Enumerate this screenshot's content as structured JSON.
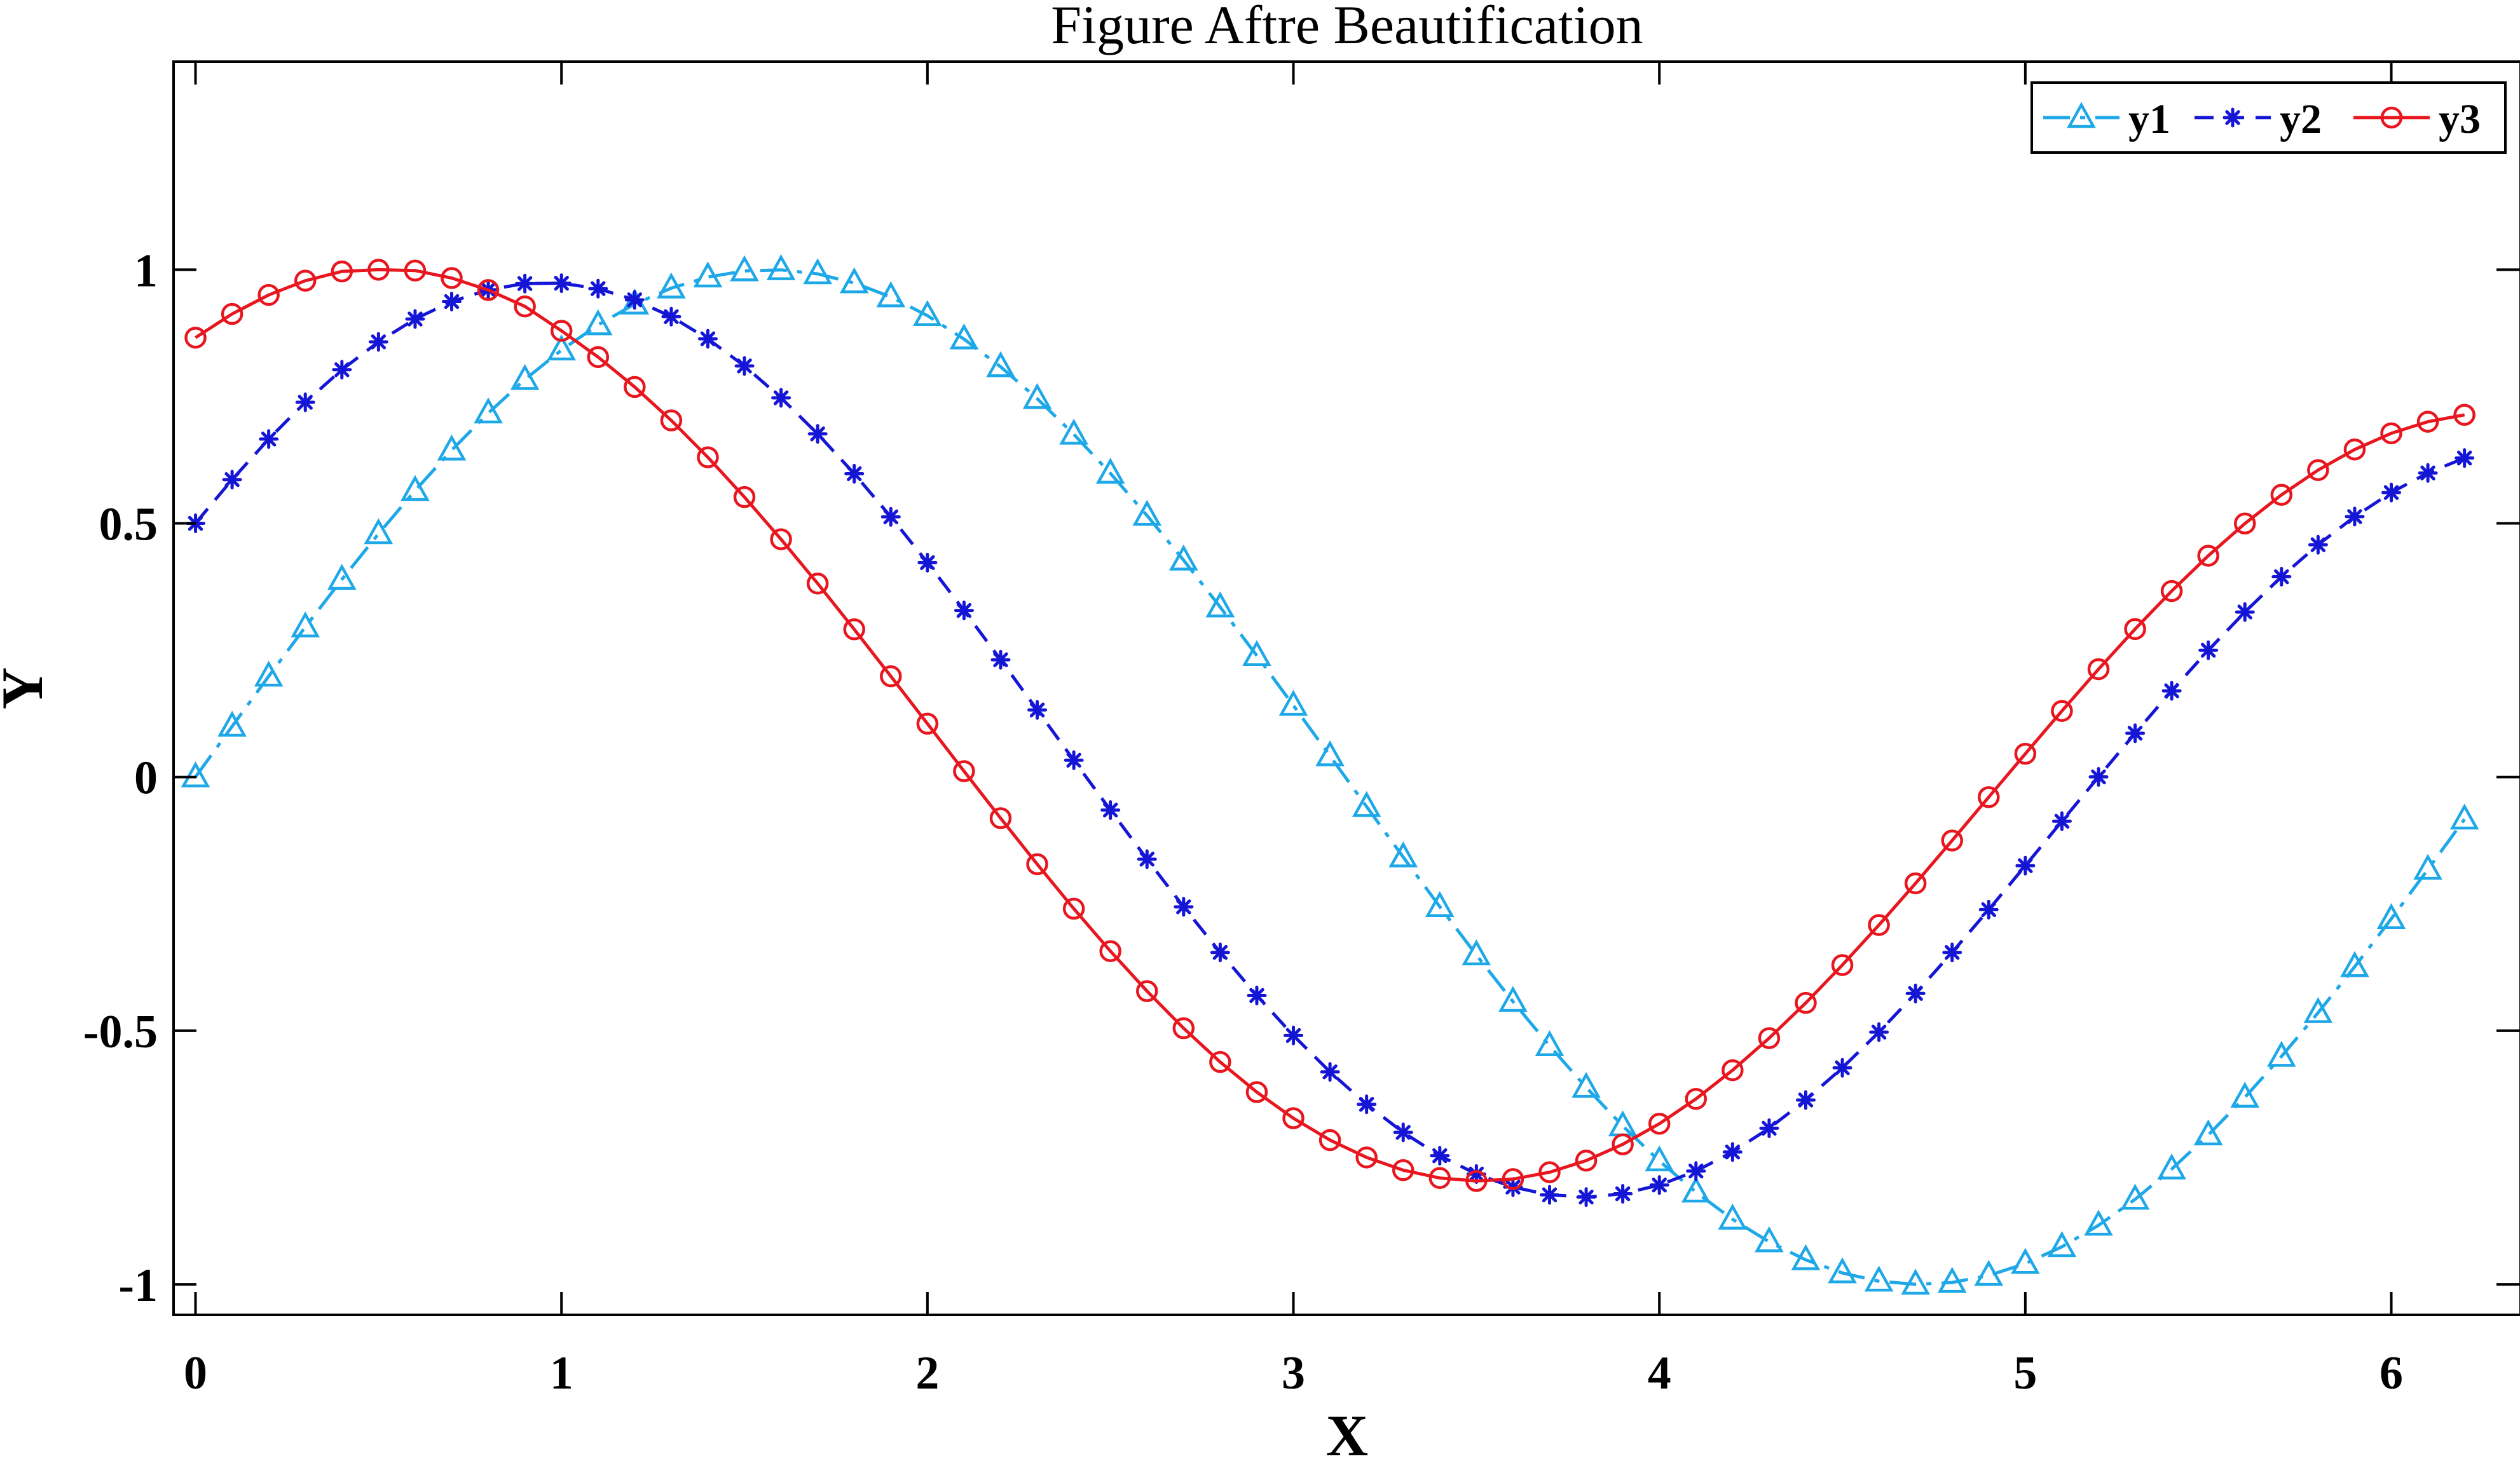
{
  "chart_data": {
    "type": "line",
    "title": "Figure Aftre Beautification",
    "xlabel": "X",
    "ylabel": "Y",
    "xlim": [
      -0.06,
      6.35
    ],
    "ylim": [
      -1.06,
      1.41
    ],
    "x_ticks": [
      0,
      1,
      2,
      3,
      4,
      5,
      6
    ],
    "x_tick_labels": [
      "0",
      "1",
      "2",
      "3",
      "4",
      "5",
      "6"
    ],
    "y_ticks": [
      -1,
      -0.5,
      0,
      0.5,
      1
    ],
    "y_tick_labels": [
      "-1",
      "-0.5",
      "0",
      "0.5",
      "1"
    ],
    "grid": false,
    "box": true,
    "legend_position": "top-right",
    "legend_orientation": "horizontal",
    "x": [
      0,
      0.1,
      0.2,
      0.3,
      0.4,
      0.5,
      0.6,
      0.7,
      0.8,
      0.9,
      1.0,
      1.1,
      1.2,
      1.3,
      1.4,
      1.5,
      1.6,
      1.7,
      1.8,
      1.9,
      2.0,
      2.1,
      2.2,
      2.3,
      2.4,
      2.5,
      2.6,
      2.7,
      2.8,
      2.9,
      3.0,
      3.1,
      3.2,
      3.3,
      3.4,
      3.5,
      3.6,
      3.7,
      3.8,
      3.9,
      4.0,
      4.1,
      4.2,
      4.3,
      4.4,
      4.5,
      4.6,
      4.7,
      4.8,
      4.9,
      5.0,
      5.1,
      5.2,
      5.3,
      5.4,
      5.5,
      5.6,
      5.7,
      5.8,
      5.9,
      6.0,
      6.1,
      6.2
    ],
    "series": [
      {
        "name": "y1",
        "color": "#1ea8e8",
        "line_style": "dash-dot",
        "marker": "triangle",
        "values": [
          0.0,
          0.0998,
          0.1987,
          0.2955,
          0.3894,
          0.4794,
          0.5646,
          0.6442,
          0.7174,
          0.7833,
          0.8415,
          0.8912,
          0.932,
          0.9636,
          0.9854,
          0.9975,
          0.9996,
          0.9917,
          0.9738,
          0.9463,
          0.9093,
          0.8632,
          0.8085,
          0.7457,
          0.6755,
          0.5985,
          0.5155,
          0.4274,
          0.335,
          0.2392,
          0.1411,
          0.0416,
          -0.0584,
          -0.1577,
          -0.2555,
          -0.3508,
          -0.4425,
          -0.5298,
          -0.6119,
          -0.6878,
          -0.7568,
          -0.8183,
          -0.8716,
          -0.9162,
          -0.9516,
          -0.9775,
          -0.9937,
          -0.9999,
          -0.9962,
          -0.9825,
          -0.9589,
          -0.9258,
          -0.8835,
          -0.8323,
          -0.7728,
          -0.7055,
          -0.6313,
          -0.5507,
          -0.4646,
          -0.3739,
          -0.2794,
          -0.1822,
          -0.0831
        ]
      },
      {
        "name": "y2",
        "color": "#1515d6",
        "line_style": "dashed",
        "marker": "asterisk",
        "values": [
          0.5,
          0.5862,
          0.6661,
          0.7386,
          0.8028,
          0.8577,
          0.9027,
          0.9371,
          0.9605,
          0.9726,
          0.9733,
          0.9626,
          0.9405,
          0.9074,
          0.8637,
          0.8102,
          0.7474,
          0.6763,
          0.5978,
          0.5128,
          0.4226,
          0.3283,
          0.2311,
          0.1322,
          0.0331,
          -0.0651,
          -0.1619,
          -0.2558,
          -0.3457,
          -0.4306,
          -0.5094,
          -0.5812,
          -0.6451,
          -0.7004,
          -0.7464,
          -0.7825,
          -0.8083,
          -0.8235,
          -0.8279,
          -0.8214,
          -0.8042,
          -0.7766,
          -0.7391,
          -0.6922,
          -0.6366,
          -0.5731,
          -0.5028,
          -0.4266,
          -0.3457,
          -0.2614,
          -0.1747,
          -0.0871,
          0.0002,
          0.0863,
          0.1699,
          0.2499,
          0.3252,
          0.3948,
          0.4578,
          0.5133,
          0.5607,
          0.5993,
          0.6287
        ]
      },
      {
        "name": "y3",
        "color": "#e8161e",
        "line_style": "solid",
        "marker": "circle",
        "values": [
          0.866,
          0.9127,
          0.9502,
          0.9783,
          0.9965,
          0.9999,
          0.9983,
          0.9835,
          0.9598,
          0.9276,
          0.8795,
          0.8278,
          0.7688,
          0.7029,
          0.6302,
          0.5518,
          0.4686,
          0.3814,
          0.2911,
          0.1986,
          0.1051,
          0.0115,
          -0.0811,
          -0.1718,
          -0.2595,
          -0.3432,
          -0.422,
          -0.4951,
          -0.5617,
          -0.621,
          -0.6725,
          -0.7156,
          -0.7498,
          -0.7748,
          -0.7903,
          -0.7962,
          -0.7924,
          -0.7789,
          -0.756,
          -0.724,
          -0.6833,
          -0.6344,
          -0.5779,
          -0.5146,
          -0.4452,
          -0.3706,
          -0.2917,
          -0.2095,
          -0.1251,
          -0.0396,
          0.0459,
          0.1303,
          0.2126,
          0.2917,
          0.3666,
          0.4362,
          0.4997,
          0.5562,
          0.605,
          0.6456,
          0.6775,
          0.7003,
          0.7139
        ]
      }
    ]
  }
}
